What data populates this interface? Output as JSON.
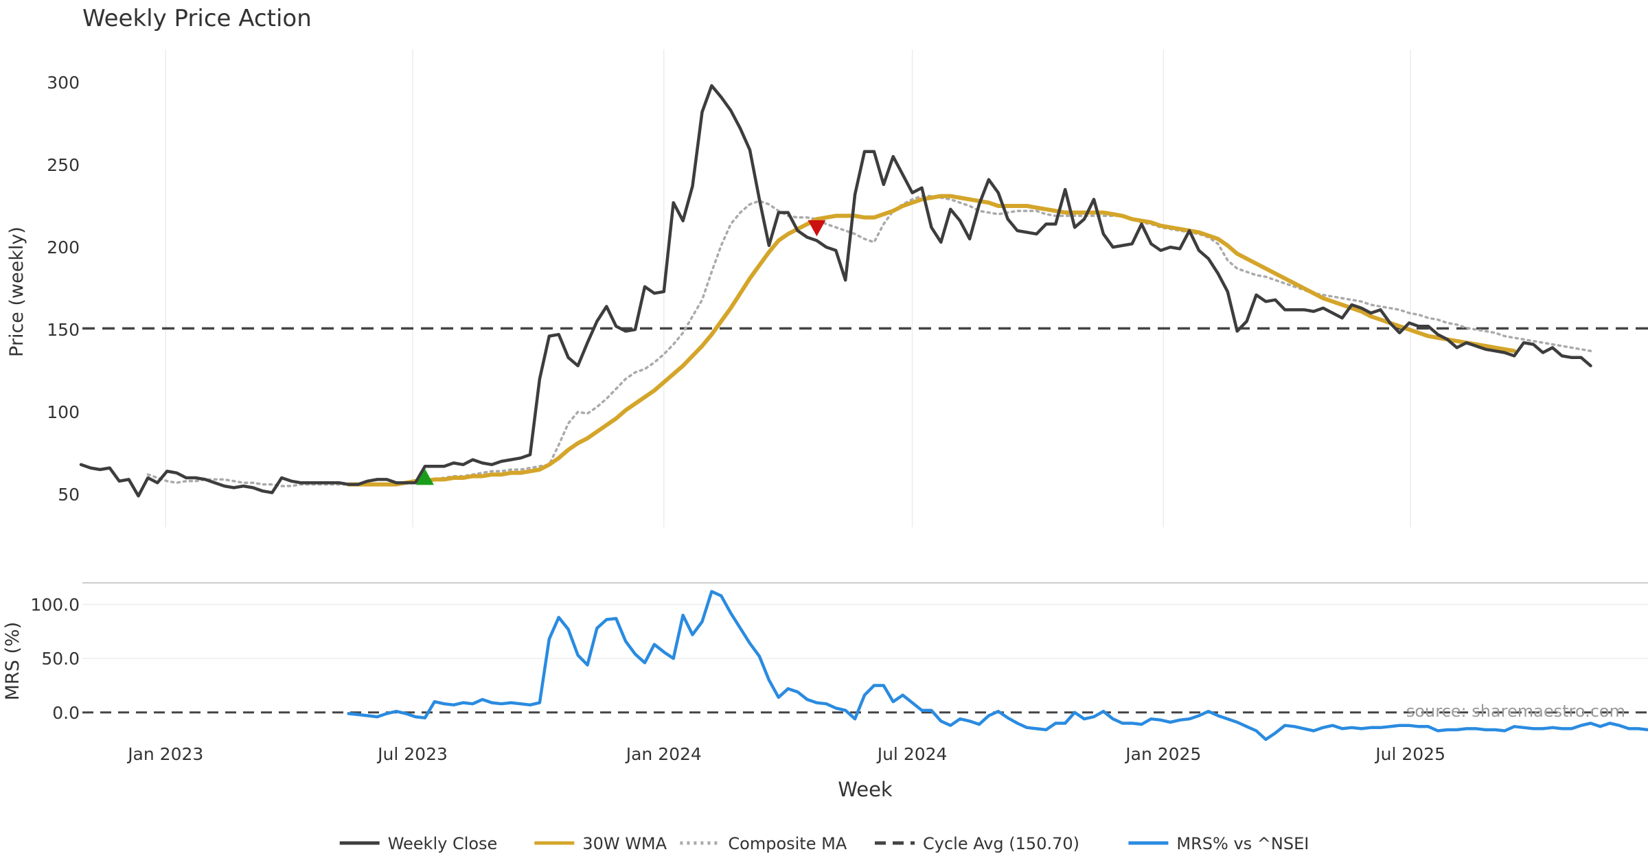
{
  "chart_data": [
    {
      "type": "line",
      "title": "Weekly Price Action",
      "ylabel": "Price (weekly)",
      "ylim": [
        30,
        320
      ],
      "y_ticks": [
        50,
        100,
        150,
        200,
        250,
        300
      ],
      "grid": "vertical only",
      "reference_line": {
        "name": "Cycle Avg (150.70)",
        "value": 150.7,
        "style": "dashed",
        "color": "#444444"
      },
      "markers": [
        {
          "type": "buy",
          "shape": "up-triangle",
          "color": "#1a9e1a",
          "date": "2023-07-10",
          "value": 60
        },
        {
          "type": "sell",
          "shape": "down-triangle",
          "color": "#cc1111",
          "date": "2024-04-22",
          "value": 212
        }
      ],
      "series": [
        {
          "name": "Weekly Close",
          "color": "#3d3d3d",
          "style": "solid",
          "start": "2022-10-31",
          "values": [
            68,
            66,
            65,
            66,
            58,
            59,
            49,
            60,
            57,
            64,
            63,
            60,
            60,
            59,
            57,
            55,
            54,
            55,
            54,
            52,
            51,
            60,
            58,
            57,
            57,
            57,
            57,
            57,
            56,
            56,
            58,
            59,
            59,
            57,
            57,
            57,
            67,
            67,
            67,
            69,
            68,
            71,
            69,
            68,
            70,
            71,
            72,
            74,
            120,
            146,
            147,
            133,
            128,
            142,
            155,
            164,
            152,
            149,
            150,
            176,
            172,
            173,
            227,
            216,
            237,
            282,
            298,
            291,
            283,
            272,
            259,
            229,
            201,
            221,
            221,
            210,
            206,
            204,
            200,
            198,
            180,
            232,
            258,
            258,
            238,
            255,
            244,
            233,
            236,
            212,
            203,
            223,
            216,
            205,
            226,
            241,
            233,
            217,
            210,
            209,
            208,
            214,
            214,
            235,
            212,
            217,
            229,
            208,
            200,
            201,
            202,
            214,
            202,
            198,
            200,
            199,
            210,
            198,
            193,
            184,
            173,
            149,
            155,
            171,
            167,
            168,
            162,
            162,
            162,
            161,
            163,
            160,
            157,
            165,
            163,
            160,
            162,
            154,
            148,
            154,
            152,
            152,
            147,
            144,
            139,
            142,
            140,
            138,
            137,
            136,
            134,
            142,
            141,
            136,
            139,
            134,
            133,
            133,
            128
          ]
        },
        {
          "name": "30W WMA",
          "color": "#d4a52a",
          "style": "solid",
          "start": "2023-05-15",
          "values": [
            56,
            56,
            56,
            56,
            56,
            56,
            57,
            58,
            58,
            59,
            59,
            60,
            60,
            61,
            61,
            62,
            62,
            63,
            63,
            64,
            65,
            68,
            72,
            77,
            81,
            84,
            88,
            92,
            96,
            101,
            105,
            109,
            113,
            118,
            123,
            128,
            134,
            140,
            147,
            155,
            163,
            172,
            181,
            189,
            197,
            204,
            208,
            211,
            214,
            217,
            218,
            219,
            219,
            219,
            218,
            218,
            220,
            222,
            225,
            227,
            229,
            230,
            231,
            231,
            230,
            229,
            228,
            227,
            225,
            225,
            225,
            225,
            224,
            223,
            222,
            221,
            221,
            221,
            221,
            221,
            220,
            219,
            217,
            216,
            215,
            213,
            212,
            211,
            210,
            209,
            207,
            205,
            201,
            196,
            193,
            190,
            187,
            184,
            181,
            178,
            175,
            172,
            169,
            167,
            165,
            163,
            161,
            158,
            156,
            154,
            152,
            150,
            148,
            146,
            145,
            144,
            143,
            142,
            141,
            140,
            139,
            138,
            137
          ]
        },
        {
          "name": "Composite MA",
          "color": "#aaaaaa",
          "style": "dotted",
          "start": "2022-12-19",
          "values": [
            62,
            60,
            58,
            57,
            58,
            58,
            59,
            59,
            59,
            58,
            57,
            57,
            56,
            56,
            55,
            55,
            56,
            56,
            56,
            56,
            56,
            56,
            56,
            56,
            56,
            56,
            57,
            57,
            58,
            58,
            59,
            60,
            61,
            61,
            62,
            63,
            64,
            64,
            65,
            65,
            66,
            67,
            68,
            80,
            93,
            100,
            99,
            103,
            108,
            114,
            120,
            124,
            126,
            130,
            135,
            141,
            148,
            158,
            168,
            185,
            201,
            214,
            221,
            226,
            228,
            226,
            222,
            219,
            218,
            218,
            217,
            214,
            212,
            210,
            208,
            205,
            203,
            214,
            222,
            226,
            229,
            231,
            231,
            230,
            229,
            227,
            225,
            222,
            221,
            220,
            221,
            222,
            222,
            222,
            220,
            219,
            219,
            219,
            219,
            219,
            219,
            219,
            219,
            217,
            215,
            214,
            212,
            211,
            210,
            209,
            208,
            206,
            202,
            192,
            187,
            185,
            183,
            182,
            180,
            178,
            176,
            174,
            172,
            171,
            170,
            169,
            168,
            167,
            165,
            164,
            163,
            162,
            160,
            159,
            157,
            156,
            154,
            153,
            151,
            150,
            149,
            148,
            146,
            145,
            144,
            143,
            142,
            141,
            140,
            139,
            138,
            137
          ]
        }
      ]
    },
    {
      "type": "line",
      "ylabel": "MRS (%)",
      "ylim": [
        -30,
        120
      ],
      "y_ticks": [
        "0.0",
        "50.0",
        "100.0"
      ],
      "reference_line": {
        "value": 0,
        "style": "dashed",
        "color": "#444444"
      },
      "xlabel": "Week",
      "x_ticks": [
        "Jan 2023",
        "Jul 2023",
        "Jan 2024",
        "Jul 2024",
        "Jan 2025",
        "Jul 2025"
      ],
      "series": [
        {
          "name": "MRS% vs ^NSEI",
          "color": "#2a8be0",
          "style": "solid",
          "start": "2023-05-15",
          "values": [
            -1,
            -2,
            -3,
            -4,
            -1,
            1,
            -1,
            -4,
            -5,
            10,
            8,
            7,
            9,
            8,
            12,
            9,
            8,
            9,
            8,
            7,
            9,
            68,
            88,
            77,
            53,
            44,
            78,
            86,
            87,
            66,
            54,
            46,
            63,
            56,
            50,
            90,
            72,
            84,
            112,
            108,
            92,
            78,
            64,
            52,
            30,
            14,
            22,
            19,
            12,
            9,
            8,
            4,
            2,
            -6,
            16,
            25,
            25,
            10,
            16,
            9,
            2,
            2,
            -8,
            -12,
            -6,
            -8,
            -11,
            -3,
            1,
            -5,
            -10,
            -14,
            -15,
            -16,
            -10,
            -10,
            0,
            -6,
            -4,
            1,
            -6,
            -10,
            -10,
            -11,
            -6,
            -7,
            -9,
            -7,
            -6,
            -3,
            1,
            -3,
            -6,
            -9,
            -13,
            -17,
            -25,
            -19,
            -12,
            -13,
            -15,
            -17,
            -14,
            -12,
            -15,
            -14,
            -15,
            -14,
            -14,
            -13,
            -12,
            -12,
            -13,
            -13,
            -17,
            -16,
            -16,
            -15,
            -15,
            -16,
            -16,
            -17,
            -13,
            -14,
            -15,
            -15,
            -14,
            -15,
            -15,
            -12,
            -10,
            -13,
            -10,
            -12,
            -15,
            -15,
            -16
          ]
        }
      ],
      "source_note": "source: sharemaestro.com"
    }
  ],
  "legend": {
    "placement": "bottom-center",
    "items": [
      {
        "label": "Weekly Close",
        "color": "#3d3d3d",
        "style": "solid"
      },
      {
        "label": "30W WMA",
        "color": "#d4a52a",
        "style": "solid"
      },
      {
        "label": "Composite MA",
        "color": "#aaaaaa",
        "style": "dotted"
      },
      {
        "label": "Cycle Avg (150.70)",
        "color": "#444444",
        "style": "dashed"
      },
      {
        "label": "MRS% vs ^NSEI",
        "color": "#2a8be0",
        "style": "solid"
      }
    ]
  }
}
